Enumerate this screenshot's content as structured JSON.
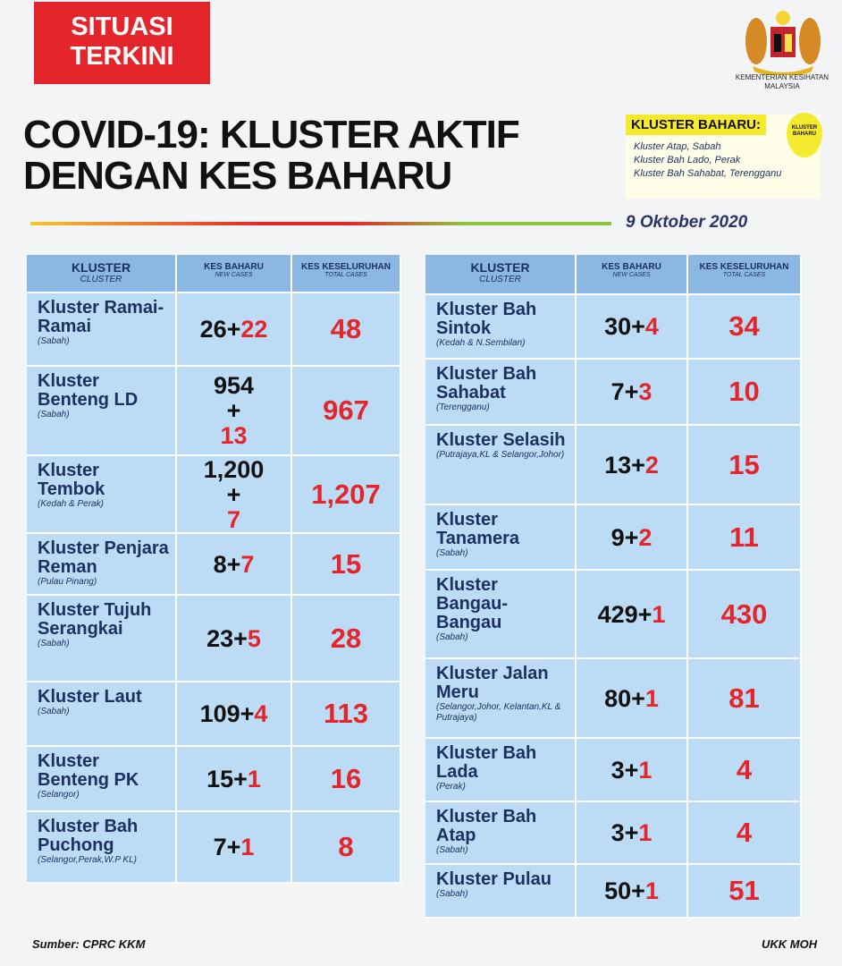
{
  "header": {
    "badge_line1": "SITUASI",
    "badge_line2": "TERKINI",
    "ministry": "KEMENTERIAN KESIHATAN MALAYSIA",
    "title": "COVID-19: KLUSTER AKTIF\nDENGAN KES BAHARU",
    "date": "9 Oktober 2020"
  },
  "new_clusters": {
    "heading": "KLUSTER BAHARU:",
    "pin_label": "KLUSTER BAHARU",
    "items": [
      "Kluster Atap, Sabah",
      "Kluster Bah Lado, Perak",
      "Kluster Bah Sahabat, Terengganu"
    ]
  },
  "columns": {
    "cluster": "KLUSTER",
    "cluster_en": "CLUSTER",
    "new": "KES BAHARU",
    "new_en": "NEW CASES",
    "total": "KES KESELURUHAN",
    "total_en": "TOTAL CASES"
  },
  "colors": {
    "accent": "#e4252b",
    "header": "#8ab8e2",
    "row": "#bcdcf5",
    "highlight": "#f6ea2f"
  },
  "left_rows": [
    {
      "name": "Kluster Ramai-Ramai",
      "region": "(Sabah)",
      "base": "26",
      "add": "22",
      "total": "48"
    },
    {
      "name": "Kluster Benteng LD",
      "region": "(Sabah)",
      "base": "954",
      "add": "13",
      "total": "967",
      "stacked": true
    },
    {
      "name": "Kluster Tembok",
      "region": "(Kedah & Perak)",
      "base": "1,200",
      "add": "7",
      "total": "1,207",
      "stacked": true
    },
    {
      "name": "Kluster Penjara Reman",
      "region": "(Pulau Pinang)",
      "base": "8",
      "add": "7",
      "total": "15"
    },
    {
      "name": "Kluster Tujuh Serangkai",
      "region": "(Sabah)",
      "base": "23",
      "add": "5",
      "total": "28"
    },
    {
      "name": "Kluster Laut",
      "region": "(Sabah)",
      "base": "109",
      "add": "4",
      "total": "113"
    },
    {
      "name": "Kluster Benteng PK",
      "region": "(Selangor)",
      "base": "15",
      "add": "1",
      "total": "16"
    },
    {
      "name": "Kluster Bah Puchong",
      "region": "(Selangor,Perak,W.P KL)",
      "base": "7",
      "add": "1",
      "total": "8"
    }
  ],
  "right_rows": [
    {
      "name": "Kluster Bah Sintok",
      "region": "(Kedah & N.Sembilan)",
      "base": "30",
      "add": "4",
      "total": "34"
    },
    {
      "name": "Kluster Bah Sahabat",
      "region": "(Terengganu)",
      "base": "7",
      "add": "3",
      "total": "10"
    },
    {
      "name": "Kluster Selasih",
      "region": "(Putrajaya,KL & Selangor,Johor)",
      "base": "13",
      "add": "2",
      "total": "15"
    },
    {
      "name": "Kluster Tanamera",
      "region": "(Sabah)",
      "base": "9",
      "add": "2",
      "total": "11"
    },
    {
      "name": "Kluster Bangau-Bangau",
      "region": "(Sabah)",
      "base": "429",
      "add": "1",
      "total": "430"
    },
    {
      "name": "Kluster Jalan Meru",
      "region": "(Selangor,Johor, Kelantan,KL & Putrajaya)",
      "base": "80",
      "add": "1",
      "total": "81"
    },
    {
      "name": "Kluster Bah Lada",
      "region": "(Perak)",
      "base": "3",
      "add": "1",
      "total": "4"
    },
    {
      "name": "Kluster Bah Atap",
      "region": "(Sabah)",
      "base": "3",
      "add": "1",
      "total": "4"
    },
    {
      "name": "Kluster Pulau",
      "region": "(Sabah)",
      "base": "50",
      "add": "1",
      "total": "51"
    }
  ],
  "footer": {
    "source": "Sumber: CPRC KKM",
    "credit": "UKK MOH"
  }
}
